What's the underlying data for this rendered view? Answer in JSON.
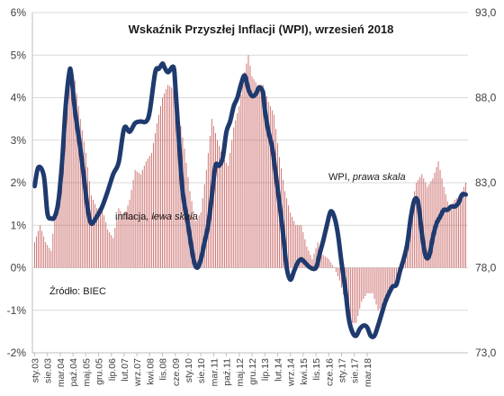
{
  "chart_data": {
    "type": "bar+line",
    "title": "Wskaźnik Przyszłej Inflacji (WPI), wrzesień 2018",
    "source": "Źródło: BIEC",
    "left_axis": {
      "ylim": [
        -2,
        6
      ],
      "ticks": [
        -2,
        -1,
        0,
        1,
        2,
        3,
        4,
        5,
        6
      ],
      "tick_labels": [
        "-2%",
        "-1%",
        "0%",
        "1%",
        "2%",
        "3%",
        "4%",
        "5%",
        "6%"
      ]
    },
    "right_axis": {
      "ylim": [
        73.0,
        93.0
      ],
      "ticks": [
        73.0,
        78.0,
        83.0,
        88.0,
        93.0
      ],
      "tick_labels": [
        "73,0",
        "78,0",
        "83,0",
        "88,0",
        "93,0"
      ]
    },
    "x_tick_labels": [
      "sty.03",
      "sie.03",
      "mar.04",
      "paź.04",
      "maj.05",
      "gru.05",
      "lip.06",
      "lut.07",
      "wrz.07",
      "kwi.08",
      "lis.08",
      "cze.09",
      "sty.10",
      "sie.10",
      "mar.11",
      "paź.11",
      "maj.12",
      "gru.12",
      "lip.13",
      "lut.14",
      "wrz.14",
      "kwi.15",
      "lis.15",
      "cze.16",
      "sty.17",
      "sie.17",
      "mar.18"
    ],
    "series": [
      {
        "name_prefix": "inflacja, ",
        "name_emphasis": "lewa skala",
        "axis": "left",
        "style": "bars",
        "color": "#c0504d",
        "anchors": [
          [
            0,
            0.6
          ],
          [
            3,
            1.0
          ],
          [
            6,
            0.6
          ],
          [
            9,
            0.4
          ],
          [
            11,
            1.2
          ],
          [
            14,
            2.4
          ],
          [
            17,
            3.5
          ],
          [
            19,
            4.5
          ],
          [
            22,
            4.4
          ],
          [
            25,
            3.5
          ],
          [
            28,
            2.7
          ],
          [
            31,
            1.7
          ],
          [
            34,
            1.4
          ],
          [
            37,
            1.4
          ],
          [
            40,
            0.9
          ],
          [
            43,
            0.7
          ],
          [
            46,
            1.4
          ],
          [
            49,
            1.2
          ],
          [
            52,
            1.6
          ],
          [
            55,
            2.3
          ],
          [
            58,
            2.2
          ],
          [
            61,
            2.5
          ],
          [
            64,
            2.7
          ],
          [
            67,
            3.4
          ],
          [
            70,
            4.0
          ],
          [
            73,
            4.3
          ],
          [
            76,
            4.2
          ],
          [
            79,
            3.6
          ],
          [
            82,
            2.8
          ],
          [
            85,
            1.8
          ],
          [
            88,
            1.1
          ],
          [
            91,
            1.3
          ],
          [
            94,
            2.3
          ],
          [
            97,
            3.5
          ],
          [
            100,
            3.0
          ],
          [
            103,
            2.6
          ],
          [
            106,
            2.4
          ],
          [
            109,
            3.3
          ],
          [
            112,
            3.8
          ],
          [
            115,
            4.6
          ],
          [
            117,
            5.0
          ],
          [
            119,
            4.5
          ],
          [
            122,
            4.3
          ],
          [
            125,
            4.3
          ],
          [
            128,
            3.9
          ],
          [
            131,
            3.6
          ],
          [
            134,
            2.6
          ],
          [
            137,
            1.8
          ],
          [
            140,
            1.3
          ],
          [
            143,
            1.0
          ],
          [
            146,
            1.0
          ],
          [
            149,
            0.5
          ],
          [
            152,
            0.2
          ],
          [
            155,
            0.6
          ],
          [
            158,
            0.3
          ],
          [
            161,
            0.2
          ],
          [
            164,
            0.0
          ],
          [
            167,
            -0.3
          ],
          [
            170,
            -0.8
          ],
          [
            173,
            -1.3
          ],
          [
            176,
            -1.3
          ],
          [
            179,
            -0.8
          ],
          [
            182,
            -0.6
          ],
          [
            185,
            -0.6
          ],
          [
            188,
            -1.0
          ],
          [
            191,
            -0.9
          ],
          [
            194,
            -0.6
          ],
          [
            197,
            -0.4
          ],
          [
            200,
            -0.2
          ],
          [
            203,
            0.5
          ],
          [
            206,
            1.4
          ],
          [
            209,
            2.0
          ],
          [
            212,
            2.2
          ],
          [
            215,
            1.9
          ],
          [
            218,
            2.1
          ],
          [
            221,
            2.5
          ],
          [
            224,
            1.9
          ],
          [
            227,
            1.4
          ],
          [
            230,
            1.6
          ],
          [
            233,
            1.7
          ],
          [
            236,
            2.0
          ]
        ]
      },
      {
        "name_prefix": "WPI, ",
        "name_emphasis": "prawa skala",
        "axis": "right",
        "style": "line",
        "color": "#1f3a6e",
        "points": [
          [
            0,
            82.8
          ],
          [
            2,
            83.9
          ],
          [
            5,
            83.4
          ],
          [
            7,
            81.2
          ],
          [
            9,
            80.9
          ],
          [
            11,
            81.0
          ],
          [
            13,
            81.9
          ],
          [
            15,
            84.2
          ],
          [
            17,
            87.5
          ],
          [
            19,
            89.5
          ],
          [
            20,
            89.4
          ],
          [
            22,
            87.3
          ],
          [
            25,
            85.0
          ],
          [
            27,
            83.3
          ],
          [
            29,
            81.5
          ],
          [
            31,
            80.6
          ],
          [
            34,
            81.0
          ],
          [
            37,
            81.6
          ],
          [
            40,
            82.5
          ],
          [
            43,
            83.5
          ],
          [
            46,
            84.2
          ],
          [
            49,
            86.2
          ],
          [
            52,
            86.0
          ],
          [
            55,
            86.5
          ],
          [
            58,
            86.6
          ],
          [
            61,
            86.6
          ],
          [
            63,
            87.2
          ],
          [
            66,
            89.5
          ],
          [
            68,
            89.7
          ],
          [
            70,
            90.0
          ],
          [
            71,
            89.8
          ],
          [
            73,
            89.5
          ],
          [
            76,
            89.8
          ],
          [
            77,
            88.7
          ],
          [
            79,
            85.5
          ],
          [
            81,
            82.5
          ],
          [
            84,
            80.5
          ],
          [
            87,
            78.5
          ],
          [
            89,
            78.0
          ],
          [
            91,
            78.5
          ],
          [
            93,
            79.5
          ],
          [
            95,
            80.5
          ],
          [
            97,
            82.2
          ],
          [
            99,
            84.0
          ],
          [
            101,
            84.0
          ],
          [
            103,
            84.5
          ],
          [
            105,
            86.0
          ],
          [
            107,
            86.6
          ],
          [
            109,
            87.5
          ],
          [
            111,
            88.0
          ],
          [
            113,
            88.8
          ],
          [
            115,
            89.3
          ],
          [
            117,
            88.5
          ],
          [
            119,
            88.1
          ],
          [
            121,
            88.2
          ],
          [
            123,
            88.6
          ],
          [
            125,
            88.3
          ],
          [
            126,
            87.3
          ],
          [
            128,
            86.0
          ],
          [
            130,
            85.1
          ],
          [
            132,
            83.5
          ],
          [
            134,
            81.8
          ],
          [
            136,
            80.0
          ],
          [
            138,
            78.0
          ],
          [
            140,
            77.3
          ],
          [
            142,
            77.8
          ],
          [
            144,
            78.3
          ],
          [
            146,
            78.5
          ],
          [
            148,
            78.3
          ],
          [
            151,
            78.0
          ],
          [
            154,
            78.0
          ],
          [
            156,
            78.8
          ],
          [
            158,
            79.6
          ],
          [
            160,
            80.5
          ],
          [
            162,
            81.3
          ],
          [
            164,
            81.0
          ],
          [
            166,
            80.0
          ],
          [
            168,
            78.3
          ],
          [
            170,
            76.8
          ],
          [
            172,
            75.0
          ],
          [
            174,
            74.2
          ],
          [
            176,
            74.0
          ],
          [
            178,
            74.4
          ],
          [
            180,
            74.6
          ],
          [
            182,
            74.5
          ],
          [
            184,
            74.0
          ],
          [
            186,
            74.0
          ],
          [
            188,
            74.6
          ],
          [
            190,
            75.3
          ],
          [
            192,
            76.0
          ],
          [
            194,
            76.5
          ],
          [
            196,
            76.9
          ],
          [
            198,
            77.0
          ],
          [
            200,
            77.8
          ],
          [
            202,
            78.5
          ],
          [
            204,
            79.4
          ],
          [
            206,
            81.0
          ],
          [
            208,
            82.0
          ],
          [
            210,
            81.8
          ],
          [
            212,
            80.0
          ],
          [
            214,
            78.7
          ],
          [
            216,
            78.7
          ],
          [
            218,
            79.8
          ],
          [
            220,
            80.6
          ],
          [
            222,
            81.0
          ],
          [
            224,
            81.4
          ],
          [
            226,
            81.4
          ],
          [
            228,
            81.6
          ],
          [
            230,
            81.6
          ],
          [
            232,
            81.8
          ],
          [
            234,
            82.3
          ],
          [
            236,
            82.3
          ]
        ]
      }
    ],
    "grid": "horizontal"
  }
}
